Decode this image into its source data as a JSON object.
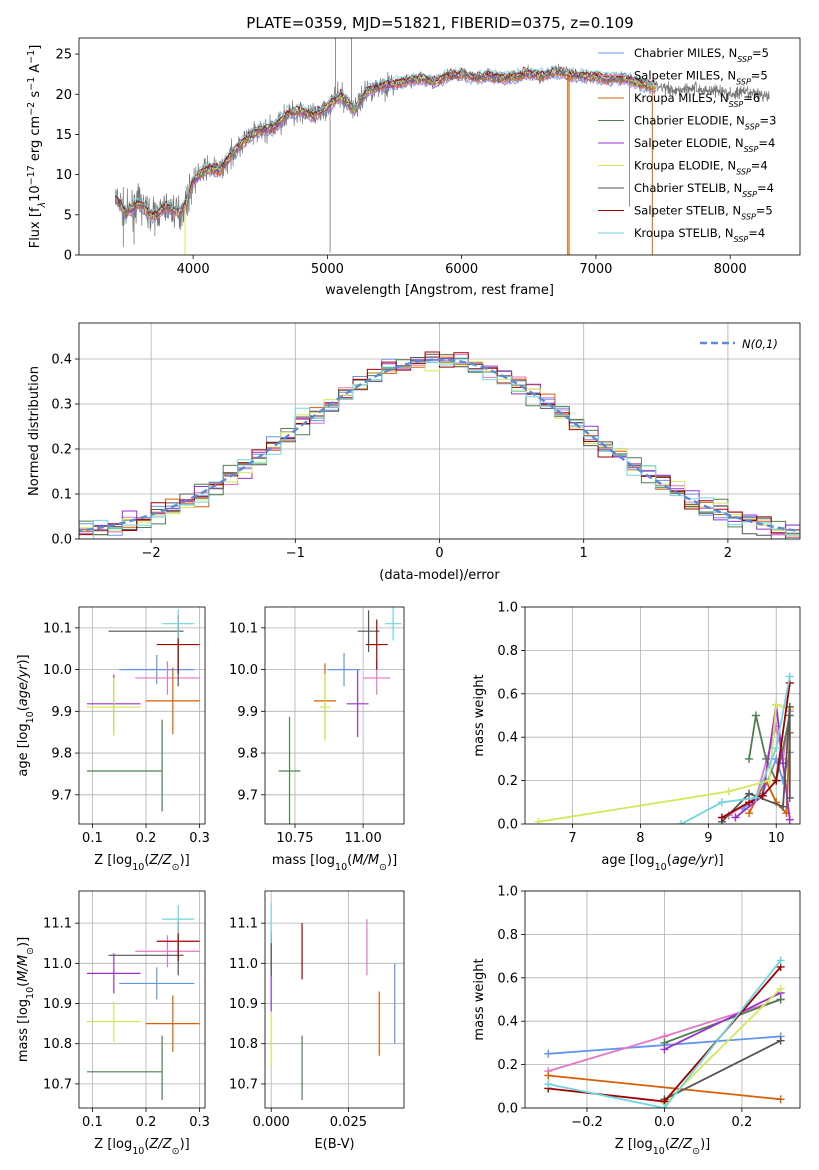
{
  "title": "PLATE=0359, MJD=51821, FIBERID=0375, z=0.109",
  "colors": {
    "Chabrier MILES": "#6495ed",
    "Salpeter MILES": "#e377c2",
    "Kroupa MILES": "#d95f02",
    "Chabrier ELODIE": "#4f7f4f",
    "Salpeter ELODIE": "#9b30d0",
    "Kroupa ELODIE": "#d4e85a",
    "Chabrier STELIB": "#555555",
    "Salpeter STELIB": "#a00000",
    "Kroupa STELIB": "#6fd6e0"
  },
  "legend_spectrum": [
    {
      "model": "Chabrier MILES",
      "nssp": "5"
    },
    {
      "model": "Salpeter MILES",
      "nssp": "5"
    },
    {
      "model": "Kroupa MILES",
      "nssp": "6"
    },
    {
      "model": "Chabrier ELODIE",
      "nssp": "3"
    },
    {
      "model": "Salpeter ELODIE",
      "nssp": "4"
    },
    {
      "model": "Kroupa ELODIE",
      "nssp": "4"
    },
    {
      "model": "Chabrier STELIB",
      "nssp": "4"
    },
    {
      "model": "Salpeter STELIB",
      "nssp": "5"
    },
    {
      "model": "Kroupa STELIB",
      "nssp": "4"
    }
  ],
  "legend_hist": "N(0,1)",
  "chart_data": [
    {
      "type": "line",
      "id": "spectrum",
      "xlabel": "wavelength [Angstrom, rest frame]",
      "ylabel_main": "Flux [f",
      "xlim": [
        3150,
        8520
      ],
      "ylim": [
        0,
        27
      ],
      "xticks": [
        4000,
        5000,
        6000,
        7000,
        8000
      ],
      "yticks": [
        0,
        5,
        10,
        15,
        20,
        25
      ],
      "continuum": [
        [
          3420,
          7.2
        ],
        [
          3500,
          5.2
        ],
        [
          3600,
          6.5
        ],
        [
          3700,
          4.8
        ],
        [
          3800,
          6.0
        ],
        [
          3900,
          5.2
        ],
        [
          3950,
          6.5
        ],
        [
          4000,
          9.2
        ],
        [
          4100,
          10.8
        ],
        [
          4200,
          10.5
        ],
        [
          4300,
          12.8
        ],
        [
          4400,
          14.5
        ],
        [
          4500,
          15.5
        ],
        [
          4600,
          15.8
        ],
        [
          4700,
          17.5
        ],
        [
          4800,
          18.0
        ],
        [
          4900,
          17.2
        ],
        [
          5000,
          18.5
        ],
        [
          5100,
          19.8
        ],
        [
          5200,
          18.0
        ],
        [
          5300,
          20.5
        ],
        [
          5400,
          21.0
        ],
        [
          5500,
          21.3
        ],
        [
          5600,
          21.6
        ],
        [
          5700,
          22.0
        ],
        [
          5800,
          21.5
        ],
        [
          5900,
          22.3
        ],
        [
          6000,
          22.5
        ],
        [
          6100,
          22.0
        ],
        [
          6200,
          22.3
        ],
        [
          6300,
          22.0
        ],
        [
          6400,
          22.2
        ],
        [
          6500,
          22.6
        ],
        [
          6600,
          22.3
        ],
        [
          6700,
          22.8
        ],
        [
          6800,
          22.4
        ],
        [
          6900,
          22.3
        ],
        [
          7000,
          22.2
        ],
        [
          7100,
          21.9
        ],
        [
          7200,
          22.0
        ],
        [
          7300,
          21.5
        ],
        [
          7400,
          21.0
        ],
        [
          7500,
          20.8
        ],
        [
          7600,
          20.5
        ],
        [
          7700,
          20.8
        ],
        [
          7800,
          20.5
        ],
        [
          7900,
          20.5
        ],
        [
          8000,
          20.0
        ],
        [
          8100,
          20.2
        ],
        [
          8200,
          20.0
        ],
        [
          8290,
          19.8
        ]
      ],
      "model_dropouts": [
        [
          3940,
          5
        ],
        [
          6790,
          3
        ],
        [
          6800,
          6
        ],
        [
          7420,
          2
        ]
      ],
      "spikes": [
        [
          3480,
          1.0
        ],
        [
          3560,
          1.3
        ],
        [
          5020,
          0.3
        ],
        [
          5060,
          27.0
        ],
        [
          5180,
          27.0
        ],
        [
          7250,
          6.0
        ]
      ]
    },
    {
      "type": "histogram",
      "id": "residuals",
      "xlabel": "(data-model)/error",
      "ylabel": "Normed distribution",
      "xlim": [
        -2.5,
        2.5
      ],
      "ylim": [
        0,
        0.48
      ],
      "xticks": [
        -2,
        -1,
        0,
        1,
        2
      ],
      "yticks": [
        0.0,
        0.1,
        0.2,
        0.3,
        0.4
      ],
      "bin_width": 0.1,
      "reference_curve": "normal(0,1)"
    },
    {
      "type": "scatter",
      "id": "age_vs_Z",
      "xlabel": "Z [log10(Z/Zsun)]",
      "ylabel": "age [log10(age/yr)]",
      "xlim": [
        0.075,
        0.31
      ],
      "ylim": [
        9.63,
        10.15
      ],
      "xticks": [
        0.1,
        0.2,
        0.3
      ],
      "yticks": [
        9.7,
        9.8,
        9.9,
        10.0,
        10.1
      ],
      "points": [
        {
          "model": "Chabrier MILES",
          "x": 0.22,
          "xerr": 0.07,
          "y": 10.0,
          "yerr": 0.035
        },
        {
          "model": "Salpeter MILES",
          "x": 0.24,
          "xerr": 0.06,
          "y": 9.98,
          "yerr": 0.04
        },
        {
          "model": "Kroupa MILES",
          "x": 0.25,
          "xerr": 0.05,
          "y": 9.925,
          "yerr": 0.08
        },
        {
          "model": "Chabrier ELODIE",
          "x": 0.16,
          "xerr": 0.07,
          "y": 9.757,
          "yerr": 0.0
        },
        {
          "model": "Chabrier ELODIE",
          "x": 0.23,
          "xerr": 0.0,
          "y": 9.77,
          "yerr": 0.11
        },
        {
          "model": "Salpeter ELODIE",
          "x": 0.14,
          "xerr": 0.05,
          "y": 9.918,
          "yerr": 0.07
        },
        {
          "model": "Kroupa ELODIE",
          "x": 0.14,
          "xerr": 0.05,
          "y": 9.91,
          "yerr": 0.07
        },
        {
          "model": "Chabrier STELIB",
          "x": 0.2,
          "xerr": 0.07,
          "y": 10.092,
          "yerr": 0.0
        },
        {
          "model": "Chabrier STELIB",
          "x": 0.26,
          "xerr": 0.0,
          "y": 10.03,
          "yerr": 0.07
        },
        {
          "model": "Salpeter STELIB",
          "x": 0.26,
          "xerr": 0.04,
          "y": 10.06,
          "yerr": 0.07
        },
        {
          "model": "Kroupa STELIB",
          "x": 0.26,
          "xerr": 0.03,
          "y": 10.11,
          "yerr": 0.035
        }
      ]
    },
    {
      "type": "scatter",
      "id": "age_vs_mass",
      "xlabel": "mass [log10(M/Msun)]",
      "xlim": [
        10.64,
        11.15
      ],
      "ylim": [
        9.63,
        10.15
      ],
      "xticks": [
        10.75,
        11.0
      ],
      "yticks": [
        9.7,
        9.8,
        9.9,
        10.0,
        10.1
      ],
      "points": [
        {
          "model": "Chabrier MILES",
          "x": 10.93,
          "xerr": 0.06,
          "y": 10.0,
          "yerr": 0.04
        },
        {
          "model": "Salpeter MILES",
          "x": 11.05,
          "xerr": 0.05,
          "y": 9.98,
          "yerr": 0.04
        },
        {
          "model": "Kroupa MILES",
          "x": 10.86,
          "xerr": 0.04,
          "y": 9.925,
          "yerr": 0.09
        },
        {
          "model": "Chabrier ELODIE",
          "x": 10.73,
          "xerr": 0.04,
          "y": 9.757,
          "yerr": 0.13
        },
        {
          "model": "Salpeter ELODIE",
          "x": 10.98,
          "xerr": 0.04,
          "y": 9.918,
          "yerr": 0.08
        },
        {
          "model": "Kroupa ELODIE",
          "x": 10.86,
          "xerr": 0.02,
          "y": 9.91,
          "yerr": 0.08
        },
        {
          "model": "Chabrier STELIB",
          "x": 11.02,
          "xerr": 0.04,
          "y": 10.092,
          "yerr": 0.05
        },
        {
          "model": "Salpeter STELIB",
          "x": 11.05,
          "xerr": 0.04,
          "y": 10.06,
          "yerr": 0.06
        },
        {
          "model": "Kroupa STELIB",
          "x": 11.11,
          "xerr": 0.03,
          "y": 10.11,
          "yerr": 0.04
        }
      ]
    },
    {
      "type": "line",
      "id": "weight_vs_age",
      "xlabel": "age [log10(age/yr)]",
      "ylabel": "mass weight",
      "xlim": [
        6.3,
        10.35
      ],
      "ylim": [
        0,
        1.0
      ],
      "xticks": [
        7,
        8,
        9,
        10
      ],
      "yticks": [
        0.0,
        0.2,
        0.4,
        0.6,
        0.8,
        1.0
      ],
      "series": [
        {
          "model": "Chabrier MILES",
          "points": [
            [
              9.5,
              0.07
            ],
            [
              9.8,
              0.14
            ],
            [
              10.0,
              0.3
            ],
            [
              10.1,
              0.2
            ],
            [
              10.2,
              0.33
            ]
          ]
        },
        {
          "model": "Salpeter MILES",
          "points": [
            [
              9.3,
              0.04
            ],
            [
              9.7,
              0.12
            ],
            [
              10.0,
              0.45
            ],
            [
              10.1,
              0.3
            ],
            [
              10.2,
              0.52
            ]
          ]
        },
        {
          "model": "Kroupa MILES",
          "points": [
            [
              9.6,
              0.05
            ],
            [
              9.85,
              0.2
            ],
            [
              10.0,
              0.1
            ],
            [
              10.15,
              0.05
            ],
            [
              10.2,
              0.42
            ]
          ]
        },
        {
          "model": "Chabrier ELODIE",
          "points": [
            [
              9.6,
              0.3
            ],
            [
              9.7,
              0.5
            ],
            [
              9.85,
              0.3
            ],
            [
              10.0,
              0.2
            ],
            [
              10.2,
              0.5
            ]
          ]
        },
        {
          "model": "Salpeter ELODIE",
          "points": [
            [
              9.4,
              0.03
            ],
            [
              9.8,
              0.13
            ],
            [
              10.0,
              0.55
            ],
            [
              10.1,
              0.28
            ],
            [
              10.2,
              0.02
            ]
          ]
        },
        {
          "model": "Kroupa ELODIE",
          "points": [
            [
              6.5,
              0.01
            ],
            [
              9.3,
              0.15
            ],
            [
              9.9,
              0.2
            ],
            [
              10.0,
              0.55
            ],
            [
              10.2,
              0.53
            ]
          ]
        },
        {
          "model": "Chabrier STELIB",
          "points": [
            [
              9.2,
              0.01
            ],
            [
              9.6,
              0.14
            ],
            [
              10.1,
              0.08
            ],
            [
              10.2,
              0.54
            ],
            [
              10.2,
              0.12
            ]
          ]
        },
        {
          "model": "Salpeter STELIB",
          "points": [
            [
              9.2,
              0.03
            ],
            [
              9.6,
              0.1
            ],
            [
              9.8,
              0.13
            ],
            [
              10.0,
              0.2
            ],
            [
              10.2,
              0.65
            ]
          ]
        },
        {
          "model": "Kroupa STELIB",
          "points": [
            [
              8.6,
              0.0
            ],
            [
              9.2,
              0.1
            ],
            [
              9.7,
              0.12
            ],
            [
              10.0,
              0.35
            ],
            [
              10.2,
              0.68
            ]
          ]
        }
      ]
    },
    {
      "type": "scatter",
      "id": "mass_vs_Z",
      "xlabel": "Z [log10(Z/Zsun)]",
      "ylabel": "mass [log10(M/Msun)]",
      "xlim": [
        0.075,
        0.31
      ],
      "ylim": [
        10.64,
        11.18
      ],
      "xticks": [
        0.1,
        0.2,
        0.3
      ],
      "yticks": [
        10.7,
        10.8,
        10.9,
        11.0,
        11.1
      ],
      "points": [
        {
          "model": "Chabrier MILES",
          "x": 0.22,
          "xerr": 0.07,
          "y": 10.95,
          "yerr": 0.04
        },
        {
          "model": "Salpeter MILES",
          "x": 0.24,
          "xerr": 0.06,
          "y": 11.03,
          "yerr": 0.04
        },
        {
          "model": "Kroupa MILES",
          "x": 0.25,
          "xerr": 0.05,
          "y": 10.85,
          "yerr": 0.07
        },
        {
          "model": "Chabrier ELODIE",
          "x": 0.16,
          "xerr": 0.07,
          "y": 10.73,
          "yerr": 0.0
        },
        {
          "model": "Chabrier ELODIE",
          "x": 0.23,
          "xerr": 0.0,
          "y": 10.74,
          "yerr": 0.08
        },
        {
          "model": "Salpeter ELODIE",
          "x": 0.14,
          "xerr": 0.05,
          "y": 10.975,
          "yerr": 0.05
        },
        {
          "model": "Kroupa ELODIE",
          "x": 0.14,
          "xerr": 0.05,
          "y": 10.855,
          "yerr": 0.05
        },
        {
          "model": "Chabrier STELIB",
          "x": 0.2,
          "xerr": 0.07,
          "y": 11.02,
          "yerr": 0.0
        },
        {
          "model": "Chabrier STELIB",
          "x": 0.26,
          "xerr": 0.0,
          "y": 11.02,
          "yerr": 0.05
        },
        {
          "model": "Salpeter STELIB",
          "x": 0.26,
          "xerr": 0.04,
          "y": 11.055,
          "yerr": 0.05
        },
        {
          "model": "Kroupa STELIB",
          "x": 0.26,
          "xerr": 0.03,
          "y": 11.11,
          "yerr": 0.035
        }
      ]
    },
    {
      "type": "scatter",
      "id": "mass_vs_EBV",
      "xlabel": "E(B-V)",
      "xlim": [
        -0.002,
        0.043
      ],
      "ylim": [
        10.64,
        11.18
      ],
      "xticks": [
        0.0,
        0.025
      ],
      "yticks": [
        10.7,
        10.8,
        10.9,
        11.0,
        11.1
      ],
      "points": [
        {
          "model": "Chabrier MILES",
          "x": 0.04,
          "y": 10.9,
          "yerr": 0.1
        },
        {
          "model": "Salpeter MILES",
          "x": 0.031,
          "y": 11.04,
          "yerr": 0.07
        },
        {
          "model": "Kroupa MILES",
          "x": 0.035,
          "y": 10.85,
          "yerr": 0.08
        },
        {
          "model": "Chabrier ELODIE",
          "x": 0.01,
          "y": 10.74,
          "yerr": 0.08
        },
        {
          "model": "Salpeter ELODIE",
          "x": 0.0,
          "y": 10.98,
          "yerr": 0.1
        },
        {
          "model": "Kroupa ELODIE",
          "x": 0.0,
          "y": 10.81,
          "yerr": 0.07
        },
        {
          "model": "Chabrier STELIB",
          "x": 0.0,
          "y": 11.02,
          "yerr": 0.05
        },
        {
          "model": "Salpeter STELIB",
          "x": 0.01,
          "y": 11.03,
          "yerr": 0.07
        },
        {
          "model": "Kroupa STELIB",
          "x": 0.0,
          "y": 11.1,
          "yerr": 0.05
        }
      ]
    },
    {
      "type": "line",
      "id": "weight_vs_Z",
      "xlabel": "Z [log10(Z/Zsun)]",
      "ylabel": "mass weight",
      "xlim": [
        -0.36,
        0.35
      ],
      "ylim": [
        0,
        1.0
      ],
      "xticks": [
        -0.2,
        0.0,
        0.2
      ],
      "yticks": [
        0.0,
        0.2,
        0.4,
        0.6,
        0.8,
        1.0
      ],
      "series": [
        {
          "model": "Chabrier MILES",
          "points": [
            [
              -0.3,
              0.25
            ],
            [
              0.3,
              0.33
            ]
          ]
        },
        {
          "model": "Salpeter MILES",
          "points": [
            [
              -0.3,
              0.17
            ],
            [
              0.0,
              0.33
            ],
            [
              0.3,
              0.5
            ]
          ]
        },
        {
          "model": "Kroupa MILES",
          "points": [
            [
              -0.3,
              0.15
            ],
            [
              0.3,
              0.04
            ]
          ]
        },
        {
          "model": "Chabrier ELODIE",
          "points": [
            [
              0.0,
              0.3
            ],
            [
              0.3,
              0.5
            ]
          ]
        },
        {
          "model": "Salpeter ELODIE",
          "points": [
            [
              0.0,
              0.27
            ],
            [
              0.3,
              0.53
            ]
          ]
        },
        {
          "model": "Kroupa ELODIE",
          "points": [
            [
              0.0,
              0.02
            ],
            [
              0.3,
              0.55
            ]
          ]
        },
        {
          "model": "Chabrier STELIB",
          "points": [
            [
              0.0,
              0.04
            ],
            [
              0.3,
              0.31
            ]
          ]
        },
        {
          "model": "Salpeter STELIB",
          "points": [
            [
              -0.3,
              0.09
            ],
            [
              0.0,
              0.03
            ],
            [
              0.3,
              0.65
            ]
          ]
        },
        {
          "model": "Kroupa STELIB",
          "points": [
            [
              -0.3,
              0.11
            ],
            [
              0.0,
              0.0
            ],
            [
              0.3,
              0.68
            ]
          ]
        }
      ]
    }
  ]
}
